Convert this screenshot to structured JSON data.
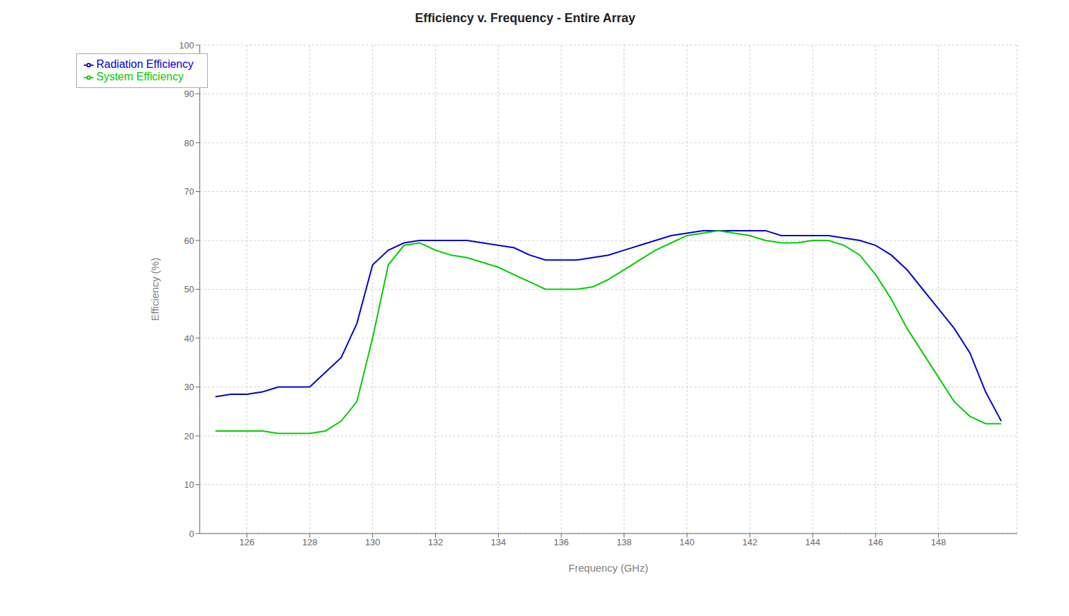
{
  "chart_data": {
    "type": "line",
    "title": "Efficiency v. Frequency - Entire Array",
    "xlabel": "Frequency (GHz)",
    "ylabel": "Efficiency (%)",
    "x": [
      125,
      125.5,
      126,
      126.5,
      127,
      127.5,
      128,
      128.5,
      129,
      129.5,
      130,
      130.5,
      131,
      131.5,
      132,
      132.5,
      133,
      133.5,
      134,
      134.5,
      135,
      135.5,
      136,
      136.5,
      137,
      137.5,
      138,
      138.5,
      139,
      139.5,
      140,
      140.5,
      141,
      141.5,
      142,
      142.5,
      143,
      143.5,
      144,
      144.5,
      145,
      145.5,
      146,
      146.5,
      147,
      147.5,
      148,
      148.5,
      149,
      149.5,
      150
    ],
    "series": [
      {
        "name": "Radiation Efficiency",
        "color": "#0000CD",
        "values": [
          28,
          28.5,
          28.5,
          29,
          30,
          30,
          30,
          33,
          36,
          43,
          55,
          58,
          59.5,
          60,
          60,
          60,
          60,
          59.5,
          59,
          58.5,
          57,
          56,
          56,
          56,
          56.5,
          57,
          58,
          59,
          60,
          61,
          61.5,
          62,
          62,
          62,
          62,
          62,
          61,
          61,
          61,
          61,
          60.5,
          60,
          59,
          57,
          54,
          50,
          46,
          42,
          37,
          29,
          23
        ]
      },
      {
        "name": "System Efficiency",
        "color": "#00CC00",
        "values": [
          21,
          21,
          21,
          21,
          20.5,
          20.5,
          20.5,
          21,
          23,
          27,
          40,
          55,
          59,
          59.5,
          58,
          57,
          56.5,
          55.5,
          54.5,
          53,
          51.5,
          50,
          50,
          50,
          50.5,
          52,
          54,
          56,
          58,
          59.5,
          61,
          61.5,
          62,
          61.5,
          61,
          60,
          59.5,
          59.5,
          60,
          60,
          59,
          57,
          53,
          48,
          42,
          37,
          32,
          27,
          24,
          22.5,
          22.5
        ]
      }
    ],
    "xlim": [
      124.5,
      150.5
    ],
    "ylim": [
      0,
      100
    ],
    "xticks": [
      126,
      128,
      130,
      132,
      134,
      136,
      138,
      140,
      142,
      144,
      146,
      148
    ],
    "yticks": [
      0,
      10,
      20,
      30,
      40,
      50,
      60,
      70,
      80,
      90,
      100
    ],
    "grid": true,
    "legend": "upper left"
  }
}
